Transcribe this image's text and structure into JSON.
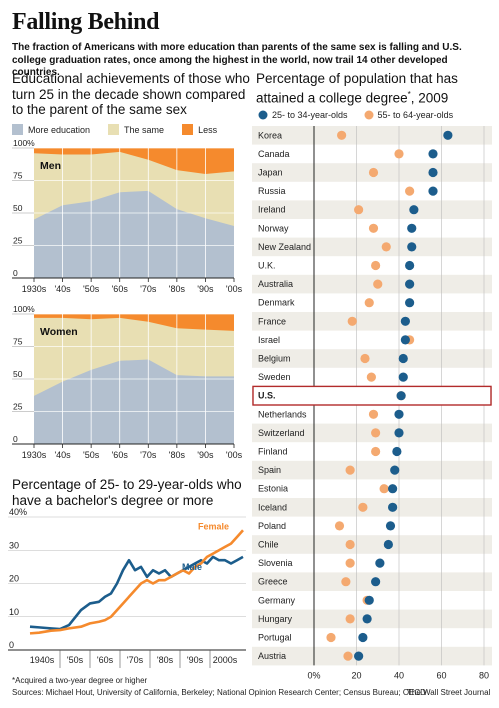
{
  "title": "Falling Behind",
  "subtitle": "The fraction of Americans with more education than parents of the same sex is falling and U.S. college graduation rates, once among the highest in the world, now trail 14 other developed countries.",
  "colors": {
    "more": "#b3c0cf",
    "same": "#e8dfb3",
    "less": "#f58a2d",
    "dot_young": "#1c5d8c",
    "dot_old": "#f4a970",
    "male": "#1c5d8c",
    "female": "#f58a2d",
    "highlight": "#b22b2b"
  },
  "left_top": {
    "title_line1": "Educational achievements of those who",
    "title_line2": "turn 25 in the decade shown compared",
    "title_line3": "to the parent of the same sex",
    "legend": {
      "more": "More education",
      "same": "The same",
      "less": "Less"
    }
  },
  "right": {
    "title_line1": "Percentage of population that has",
    "title_line2": "attained a college degree",
    "title_note": "*",
    "title_year": ", 2009",
    "legend": {
      "young": "25- to 34-year-olds",
      "old": "55- to 64-year-olds"
    }
  },
  "left_bottom": {
    "title_line1": "Percentage of 25- to 29-year-olds who",
    "title_line2": "have a bachelor's degree or more"
  },
  "footnote": "*Acquired a two-year degree or higher",
  "sources": "Sources: Michael Hout, University of California, Berkeley; National Opinion Research Center; Census Bureau; OECD",
  "credit": "The Wall Street Journal",
  "chart_data": [
    {
      "type": "area",
      "title": "Men",
      "x": [
        "1930s",
        "'40s",
        "'50s",
        "'60s",
        "'70s",
        "'80s",
        "'90s",
        "'00s"
      ],
      "yticks": [
        "0",
        "25",
        "50",
        "75",
        "100%"
      ],
      "ylim": [
        0,
        100
      ],
      "series": [
        {
          "name": "More education",
          "values": [
            45,
            56,
            59,
            66,
            67,
            53,
            46,
            40
          ]
        },
        {
          "name": "The same",
          "values": [
            51,
            39,
            36,
            31,
            24,
            30,
            34,
            42
          ]
        },
        {
          "name": "Less",
          "values": [
            4,
            5,
            5,
            3,
            9,
            17,
            20,
            18
          ]
        }
      ]
    },
    {
      "type": "area",
      "title": "Women",
      "x": [
        "1930s",
        "'40s",
        "'50s",
        "'60s",
        "'70s",
        "'80s",
        "'90s",
        "'00s"
      ],
      "yticks": [
        "0",
        "25",
        "50",
        "75",
        "100%"
      ],
      "ylim": [
        0,
        100
      ],
      "series": [
        {
          "name": "More education",
          "values": [
            37,
            48,
            57,
            64,
            65,
            53,
            52,
            52
          ]
        },
        {
          "name": "The same",
          "values": [
            60,
            49,
            39,
            33,
            29,
            36,
            36,
            35
          ]
        },
        {
          "name": "Less",
          "values": [
            3,
            3,
            4,
            3,
            6,
            11,
            12,
            13
          ]
        }
      ]
    },
    {
      "type": "line",
      "xlabels": [
        "1940s",
        "'50s",
        "'60s",
        "'70s",
        "'80s",
        "'90s",
        "2000s"
      ],
      "yticks": [
        "0",
        "10",
        "20",
        "30",
        "40%"
      ],
      "ylim": [
        0,
        40
      ],
      "xlim": [
        1938,
        2012
      ],
      "series": [
        {
          "name": "Male",
          "x": [
            1940,
            1943,
            1947,
            1950,
            1953,
            1957,
            1960,
            1963,
            1965,
            1967,
            1969,
            1971,
            1973,
            1975,
            1977,
            1979,
            1981,
            1983,
            1985,
            1987,
            1989,
            1991,
            1993,
            1995,
            1997,
            1999,
            2001,
            2003,
            2005,
            2007,
            2009,
            2011
          ],
          "values": [
            7,
            6.8,
            6.5,
            6.3,
            7.5,
            12,
            14,
            14.5,
            16,
            17,
            20,
            24,
            27,
            24,
            25,
            22,
            24,
            23,
            24,
            22,
            23,
            24,
            25,
            26,
            27,
            26,
            28,
            27,
            27,
            26,
            27,
            28
          ]
        },
        {
          "name": "Female",
          "x": [
            1940,
            1943,
            1947,
            1950,
            1953,
            1957,
            1960,
            1963,
            1965,
            1967,
            1969,
            1971,
            1973,
            1975,
            1977,
            1979,
            1981,
            1983,
            1985,
            1987,
            1989,
            1991,
            1993,
            1995,
            1997,
            1999,
            2001,
            2003,
            2005,
            2007,
            2009,
            2011
          ],
          "values": [
            5,
            5.2,
            5.8,
            6,
            6.5,
            7,
            8,
            8.5,
            9,
            10,
            12,
            14,
            16,
            18,
            20,
            21,
            20,
            21,
            21,
            22,
            23,
            24,
            23,
            25,
            26,
            28,
            29,
            30,
            31,
            32,
            34,
            36
          ]
        }
      ]
    },
    {
      "type": "scatter",
      "xlim": [
        0,
        80
      ],
      "xticks": [
        "0%",
        "20",
        "40",
        "60",
        "80"
      ],
      "categories": [
        "Korea",
        "Canada",
        "Japan",
        "Russia",
        "Ireland",
        "Norway",
        "New Zealand",
        "U.K.",
        "Australia",
        "Denmark",
        "France",
        "Israel",
        "Belgium",
        "Sweden",
        "U.S.",
        "Netherlands",
        "Switzerland",
        "Finland",
        "Spain",
        "Estonia",
        "Iceland",
        "Poland",
        "Chile",
        "Slovenia",
        "Greece",
        "Germany",
        "Hungary",
        "Portugal",
        "Austria"
      ],
      "highlight": "U.S.",
      "series": [
        {
          "name": "25- to 34-year-olds",
          "values": [
            63,
            56,
            56,
            56,
            47,
            46,
            46,
            45,
            45,
            45,
            43,
            43,
            42,
            42,
            41,
            40,
            40,
            39,
            38,
            37,
            37,
            36,
            35,
            31,
            29,
            26,
            25,
            23,
            21
          ]
        },
        {
          "name": "55- to 64-year-olds",
          "values": [
            13,
            40,
            28,
            45,
            21,
            28,
            34,
            29,
            30,
            26,
            18,
            45,
            24,
            27,
            41,
            28,
            29,
            29,
            17,
            33,
            23,
            12,
            17,
            17,
            15,
            25,
            17,
            8,
            16
          ]
        }
      ]
    }
  ]
}
